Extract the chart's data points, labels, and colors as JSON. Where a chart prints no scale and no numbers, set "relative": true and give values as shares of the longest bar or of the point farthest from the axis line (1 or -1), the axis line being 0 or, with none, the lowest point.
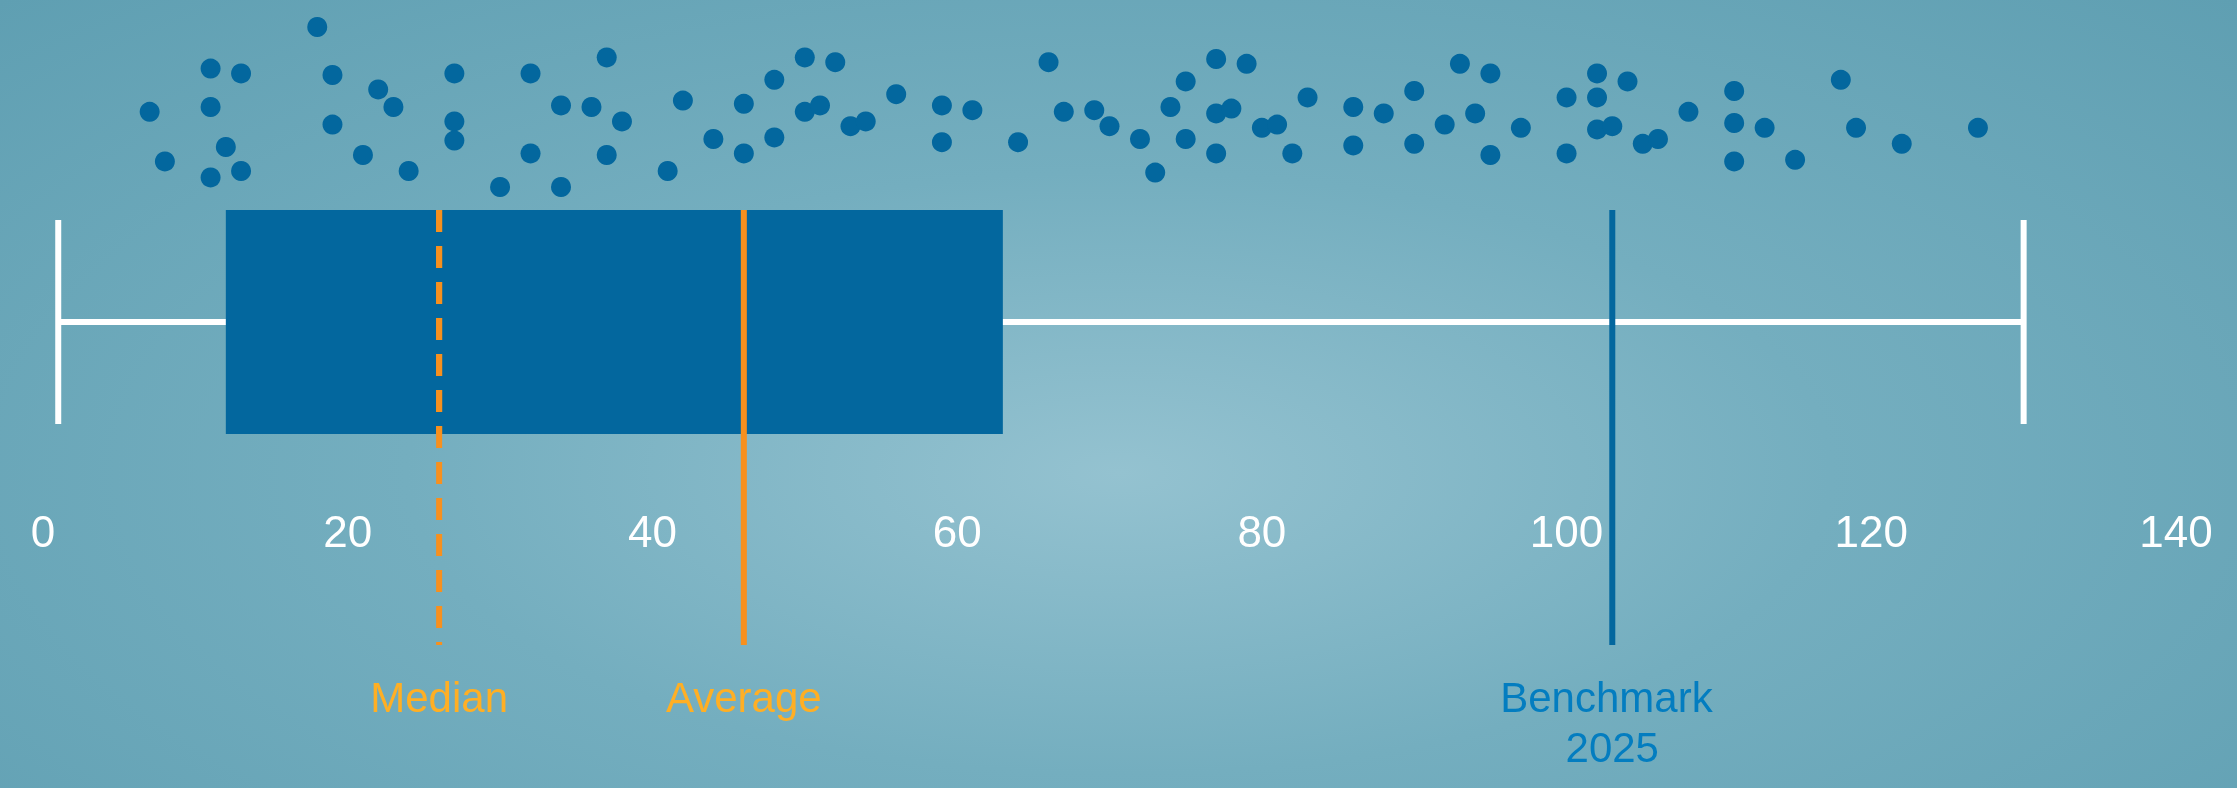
{
  "chart_data": [
    {
      "type": "scatter",
      "relative": true,
      "color": "#03679e",
      "marker": "circle",
      "xlim": [
        0,
        140
      ],
      "tick_labels": false,
      "x": [
        18,
        7,
        8,
        11,
        11,
        12,
        11,
        13,
        13,
        19,
        19,
        21,
        22,
        23,
        24,
        27,
        27,
        27,
        30,
        32,
        32,
        34,
        34,
        37,
        36,
        38,
        37,
        41,
        42,
        44,
        46,
        46,
        48,
        48,
        50,
        50,
        51,
        52,
        53,
        54,
        56,
        59,
        59,
        61,
        64,
        66,
        67,
        69,
        70,
        72,
        73,
        74,
        75,
        75,
        77,
        77,
        77,
        78,
        79,
        80,
        81,
        82,
        83,
        86,
        86,
        88,
        90,
        90,
        92,
        93,
        94,
        95,
        95,
        97,
        100,
        100,
        102,
        102,
        102,
        103,
        104,
        105,
        106,
        108,
        111,
        111,
        111,
        113,
        115,
        118,
        119,
        122,
        127
      ],
      "values": [
        1.0,
        0.47,
        0.16,
        0.74,
        0.5,
        0.25,
        0.06,
        0.71,
        0.1,
        0.7,
        0.39,
        0.2,
        0.61,
        0.5,
        0.1,
        0.71,
        0.41,
        0.29,
        0,
        0.71,
        0.21,
        0.51,
        0,
        0.81,
        0.5,
        0.41,
        0.2,
        0.1,
        0.54,
        0.3,
        0.21,
        0.52,
        0.67,
        0.31,
        0.47,
        0.81,
        0.51,
        0.78,
        0.38,
        0.41,
        0.58,
        0.51,
        0.28,
        0.48,
        0.28,
        0.78,
        0.47,
        0.48,
        0.38,
        0.3,
        0.09,
        0.5,
        0.66,
        0.3,
        0.8,
        0.46,
        0.21,
        0.49,
        0.77,
        0.37,
        0.39,
        0.21,
        0.56,
        0.5,
        0.26,
        0.46,
        0.6,
        0.27,
        0.39,
        0.77,
        0.46,
        0.71,
        0.2,
        0.37,
        0.56,
        0.21,
        0.71,
        0.56,
        0.36,
        0.38,
        0.66,
        0.27,
        0.3,
        0.47,
        0.6,
        0.4,
        0.16,
        0.37,
        0.17,
        0.67,
        0.37,
        0.27,
        0.37
      ]
    },
    {
      "type": "box",
      "orientation": "horizontal",
      "categories": [
        null
      ],
      "color": "#03679e",
      "boxes": [
        {
          "low": 1,
          "q1": 12,
          "median": 26,
          "q3": 63,
          "high": 130
        }
      ],
      "xlim": [
        0,
        140
      ],
      "xticks": [
        0,
        20,
        40,
        60,
        80,
        100,
        120,
        140
      ],
      "ref_lines": [
        {
          "axis": "x",
          "value": 26,
          "label": "Median",
          "color": "#f7901e",
          "line_style": "dashed"
        },
        {
          "axis": "x",
          "value": 46,
          "label": "Average",
          "color": "#f7901e",
          "line_style": "solid"
        },
        {
          "axis": "x",
          "value": 103,
          "label": "Benchmark 2025",
          "color": "#03679e",
          "line_style": "solid"
        }
      ]
    }
  ]
}
